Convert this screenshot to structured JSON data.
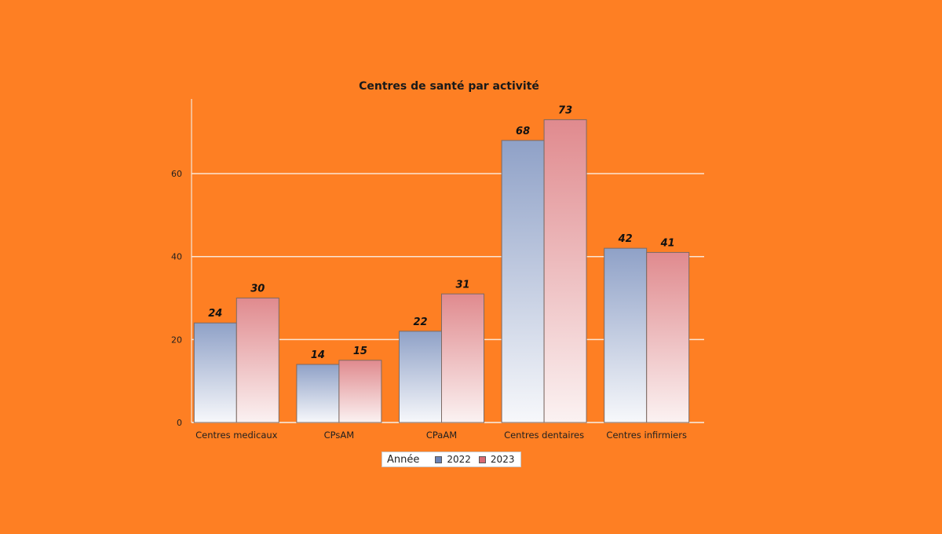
{
  "chart_data": {
    "type": "bar",
    "title": "Centres de santé par activité",
    "categories": [
      "Centres medicaux",
      "CPsAM",
      "CPaAM",
      "Centres dentaires",
      "Centres infirmiers"
    ],
    "series": [
      {
        "name": "2022",
        "values": [
          24,
          14,
          22,
          68,
          42
        ],
        "color": "#6a82b4"
      },
      {
        "name": "2023",
        "values": [
          30,
          15,
          31,
          73,
          41
        ],
        "color": "#d86a72"
      }
    ],
    "xlabel": "",
    "ylabel": "",
    "ylim": [
      0,
      78
    ],
    "yticks": [
      0,
      20,
      40,
      60
    ],
    "grid": true,
    "legend": {
      "title": "Année",
      "placement": "bottom-center"
    }
  }
}
